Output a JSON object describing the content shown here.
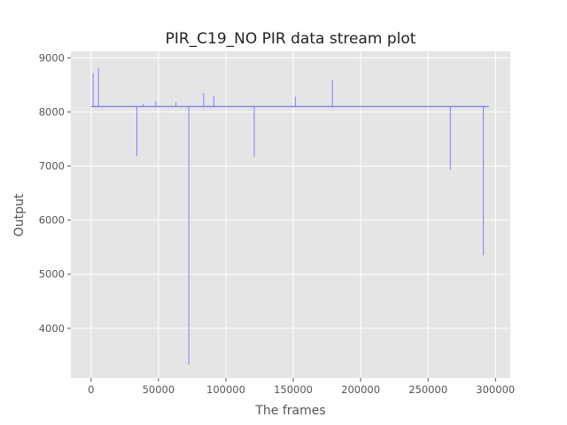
{
  "chart_data": {
    "type": "line",
    "title": "PIR_C19_NO PIR data stream plot",
    "xlabel": "The frames",
    "ylabel": "Output",
    "xlim": [
      -15000,
      311000
    ],
    "ylim": [
      3080,
      9120
    ],
    "xticks": [
      0,
      50000,
      100000,
      150000,
      200000,
      250000,
      300000
    ],
    "xtick_labels": [
      "0",
      "50000",
      "100000",
      "150000",
      "200000",
      "250000",
      "300000"
    ],
    "yticks": [
      4000,
      5000,
      6000,
      7000,
      8000,
      9000
    ],
    "ytick_labels": [
      "4000",
      "5000",
      "6000",
      "7000",
      "8000",
      "9000"
    ],
    "grid": true,
    "background_color": "#e5e5e5",
    "grid_color": "#ffffff",
    "series": [
      {
        "color": "#8080f0",
        "baseline": 8100,
        "x_range": [
          0,
          295000
        ],
        "spikes": [
          {
            "x": 1500,
            "y": 8720
          },
          {
            "x": 5500,
            "y": 8810
          },
          {
            "x": 34000,
            "y": 7180
          },
          {
            "x": 38500,
            "y": 8150
          },
          {
            "x": 48000,
            "y": 8200
          },
          {
            "x": 63000,
            "y": 8180
          },
          {
            "x": 72500,
            "y": 3330
          },
          {
            "x": 83500,
            "y": 8350
          },
          {
            "x": 91000,
            "y": 8290
          },
          {
            "x": 121000,
            "y": 7170
          },
          {
            "x": 151500,
            "y": 8280
          },
          {
            "x": 179000,
            "y": 8590
          },
          {
            "x": 266500,
            "y": 6930
          },
          {
            "x": 291000,
            "y": 5350
          }
        ]
      }
    ]
  }
}
